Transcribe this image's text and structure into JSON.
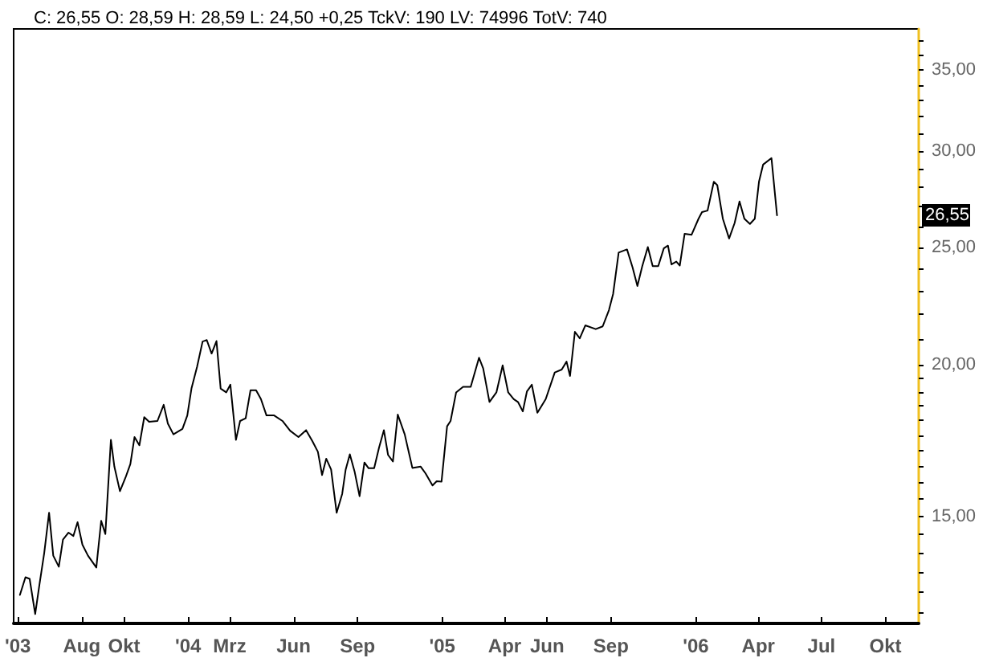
{
  "chart_data": {
    "type": "line",
    "title": "C: 26,55 O: 28,59 H: 28,59 L: 24,50 +0,25 TckV: 190 LV: 74996 TotV: 740",
    "log": "y",
    "grid": false,
    "marker": "none",
    "line_style": "solid",
    "xlim": [
      "2003-04-25",
      "2006-11-18"
    ],
    "xticks": [
      {
        "value": "2003-05-01",
        "label": "'03"
      },
      {
        "value": "2003-08-01",
        "label": "Aug"
      },
      {
        "value": "2003-10-01",
        "label": "Okt"
      },
      {
        "value": "2004-01-01",
        "label": "'04"
      },
      {
        "value": "2004-03-01",
        "label": "Mrz"
      },
      {
        "value": "2004-06-01",
        "label": "Jun"
      },
      {
        "value": "2004-09-01",
        "label": "Sep"
      },
      {
        "value": "2005-01-01",
        "label": "'05"
      },
      {
        "value": "2005-04-01",
        "label": "Apr"
      },
      {
        "value": "2005-06-01",
        "label": "Jun"
      },
      {
        "value": "2005-09-01",
        "label": "Sep"
      },
      {
        "value": "2006-01-01",
        "label": "'06"
      },
      {
        "value": "2006-04-01",
        "label": "Apr"
      },
      {
        "value": "2006-07-01",
        "label": "Jul"
      },
      {
        "value": "2006-10-01",
        "label": "Okt"
      }
    ],
    "ylim": [
      12.25,
      37.8
    ],
    "yticks": [
      {
        "value": 12.5,
        "label": null
      },
      {
        "value": 13,
        "label": null
      },
      {
        "value": 13.5,
        "label": null
      },
      {
        "value": 14,
        "label": null
      },
      {
        "value": 14.5,
        "label": null
      },
      {
        "value": 15,
        "label": "15,00"
      },
      {
        "value": 15.5,
        "label": null
      },
      {
        "value": 16,
        "label": null
      },
      {
        "value": 16.5,
        "label": null
      },
      {
        "value": 17,
        "label": null
      },
      {
        "value": 17.5,
        "label": null
      },
      {
        "value": 18,
        "label": null
      },
      {
        "value": 18.5,
        "label": null
      },
      {
        "value": 19,
        "label": null
      },
      {
        "value": 19.5,
        "label": null
      },
      {
        "value": 20,
        "label": "20,00"
      },
      {
        "value": 21,
        "label": null
      },
      {
        "value": 22,
        "label": null
      },
      {
        "value": 23,
        "label": null
      },
      {
        "value": 24,
        "label": null
      },
      {
        "value": 25,
        "label": "25,00"
      },
      {
        "value": 26,
        "label": null
      },
      {
        "value": 27,
        "label": null
      },
      {
        "value": 28,
        "label": null
      },
      {
        "value": 29,
        "label": null
      },
      {
        "value": 30,
        "label": "30,00"
      },
      {
        "value": 31,
        "label": null
      },
      {
        "value": 32,
        "label": null
      },
      {
        "value": 33,
        "label": null
      },
      {
        "value": 34,
        "label": null
      },
      {
        "value": 35,
        "label": "35,00"
      },
      {
        "value": 36,
        "label": null
      },
      {
        "value": 37,
        "label": null
      }
    ],
    "annotations": [
      "26,55"
    ],
    "series": [
      {
        "color": "#000000",
        "x": [
          "2003-05-04",
          "2003-05-12",
          "2003-05-18",
          "2003-05-26",
          "2003-06-01",
          "2003-06-08",
          "2003-06-15",
          "2003-06-21",
          "2003-06-29",
          "2003-07-05",
          "2003-07-13",
          "2003-07-20",
          "2003-07-26",
          "2003-08-02",
          "2003-08-10",
          "2003-08-22",
          "2003-08-29",
          "2003-09-04",
          "2003-09-12",
          "2003-09-17",
          "2003-09-25",
          "2003-10-03",
          "2003-10-10",
          "2003-10-16",
          "2003-10-23",
          "2003-10-30",
          "2003-11-06",
          "2003-11-18",
          "2003-11-27",
          "2003-12-03",
          "2003-12-11",
          "2003-12-24",
          "2003-12-31",
          "2004-01-06",
          "2004-01-14",
          "2004-01-22",
          "2004-01-28",
          "2004-02-04",
          "2004-02-11",
          "2004-02-17",
          "2004-02-25",
          "2004-03-02",
          "2004-03-10",
          "2004-03-16",
          "2004-03-24",
          "2004-03-31",
          "2004-04-08",
          "2004-04-15",
          "2004-04-23",
          "2004-05-04",
          "2004-05-16",
          "2004-05-27",
          "2004-06-08",
          "2004-06-19",
          "2004-06-28",
          "2004-07-06",
          "2004-07-12",
          "2004-07-18",
          "2004-07-25",
          "2004-08-02",
          "2004-08-10",
          "2004-08-15",
          "2004-08-21",
          "2004-08-28",
          "2004-09-04",
          "2004-09-11",
          "2004-09-17",
          "2004-09-25",
          "2004-10-02",
          "2004-10-09",
          "2004-10-15",
          "2004-10-22",
          "2004-10-29",
          "2004-11-08",
          "2004-11-19",
          "2004-12-01",
          "2004-12-08",
          "2004-12-18",
          "2004-12-24",
          "2004-12-31",
          "2005-01-08",
          "2005-01-13",
          "2005-01-21",
          "2005-01-31",
          "2005-02-11",
          "2005-02-23",
          "2005-03-01",
          "2005-03-10",
          "2005-03-20",
          "2005-03-29",
          "2005-04-06",
          "2005-04-14",
          "2005-04-20",
          "2005-04-27",
          "2005-05-03",
          "2005-05-10",
          "2005-05-18",
          "2005-05-30",
          "2005-06-12",
          "2005-06-22",
          "2005-06-29",
          "2005-07-04",
          "2005-07-11",
          "2005-07-18",
          "2005-07-26",
          "2005-08-10",
          "2005-08-20",
          "2005-08-29",
          "2005-09-04",
          "2005-09-12",
          "2005-09-24",
          "2005-10-02",
          "2005-10-09",
          "2005-10-16",
          "2005-10-24",
          "2005-10-31",
          "2005-11-08",
          "2005-11-16",
          "2005-11-22",
          "2005-11-27",
          "2005-12-04",
          "2005-12-09",
          "2005-12-16",
          "2005-12-26",
          "2006-01-05",
          "2006-01-10",
          "2006-01-18",
          "2006-01-27",
          "2006-02-01",
          "2006-02-09",
          "2006-02-18",
          "2006-02-26",
          "2006-03-05",
          "2006-03-12",
          "2006-03-20",
          "2006-03-27",
          "2006-04-02",
          "2006-04-08",
          "2006-04-20",
          "2006-04-28"
        ],
        "values": [
          12.93,
          13.37,
          13.33,
          12.47,
          13.17,
          14.0,
          15.11,
          13.93,
          13.64,
          14.36,
          14.55,
          14.46,
          14.84,
          14.22,
          13.93,
          13.62,
          14.88,
          14.51,
          17.35,
          16.49,
          15.74,
          16.15,
          16.57,
          17.44,
          17.17,
          18.11,
          17.95,
          17.98,
          18.54,
          17.89,
          17.53,
          17.71,
          18.17,
          19.12,
          19.92,
          20.9,
          20.96,
          20.43,
          20.92,
          19.12,
          18.98,
          19.26,
          17.35,
          17.98,
          18.07,
          19.06,
          19.06,
          18.74,
          18.17,
          18.17,
          17.98,
          17.65,
          17.44,
          17.67,
          17.31,
          16.96,
          16.23,
          16.74,
          16.4,
          15.11,
          15.66,
          16.4,
          16.88,
          16.32,
          15.59,
          16.62,
          16.44,
          16.44,
          17.09,
          17.67,
          16.86,
          16.65,
          18.2,
          17.53,
          16.45,
          16.49,
          16.28,
          15.91,
          16.04,
          16.03,
          17.8,
          17.98,
          18.98,
          19.18,
          19.18,
          20.27,
          19.86,
          18.64,
          18.98,
          19.98,
          18.98,
          18.74,
          18.64,
          18.31,
          19.02,
          19.26,
          18.26,
          18.74,
          19.71,
          19.82,
          20.12,
          19.58,
          21.29,
          21.03,
          21.55,
          21.4,
          21.51,
          22.18,
          22.87,
          24.74,
          24.89,
          24.06,
          23.22,
          24.11,
          25.0,
          24.11,
          24.11,
          24.94,
          25.07,
          24.19,
          24.32,
          24.14,
          25.64,
          25.59,
          26.38,
          26.71,
          26.79,
          28.29,
          28.11,
          26.38,
          25.41,
          26.17,
          27.26,
          26.38,
          26.12,
          26.38,
          28.29,
          29.23,
          29.59,
          26.55
        ]
      }
    ]
  }
}
